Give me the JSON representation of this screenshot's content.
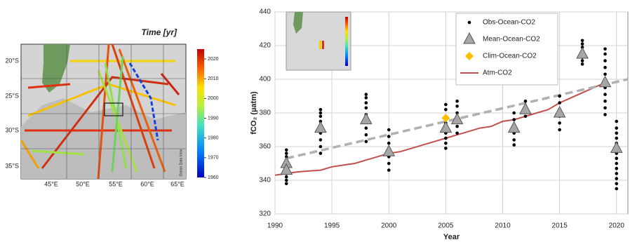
{
  "map": {
    "title": "Time [yr]",
    "colorbar_ticks": [
      2020,
      2010,
      2000,
      1990,
      1980,
      1970,
      1960
    ],
    "colorbar_lim": [
      1960,
      2025
    ],
    "lat_labels": [
      "20°S",
      "25°S",
      "30°S",
      "35°S"
    ],
    "lon_labels": [
      "45°E",
      "50°E",
      "55°E",
      "60°E",
      "65°E"
    ],
    "credit": "Ocean Data View"
  },
  "chart_data": {
    "type": "scatter",
    "x_label": "Year",
    "y_label": "fCO₂ (µatm)",
    "xlim": [
      1990,
      2021
    ],
    "xticks": [
      1990,
      1995,
      2000,
      2005,
      2010,
      2015,
      2020
    ],
    "ylim": [
      320,
      440
    ],
    "yticks": [
      320,
      340,
      360,
      380,
      400,
      420,
      440
    ],
    "grid": true,
    "legend": "upper center",
    "series": [
      {
        "name": "Obs-Ocean-CO2",
        "color": "#000000",
        "marker": "circle",
        "x": [
          1991,
          1991,
          1991,
          1991,
          1991,
          1991,
          1991,
          1991,
          1991,
          1991,
          1991,
          1994,
          1994,
          1994,
          1994,
          1994,
          1994,
          1994,
          1994,
          1994,
          1998,
          1998,
          1998,
          1998,
          1998,
          1998,
          1998,
          1998,
          1998,
          2000,
          2000,
          2000,
          2000,
          2000,
          2000,
          2000,
          2005,
          2005,
          2005,
          2005,
          2005,
          2005,
          2005,
          2005,
          2005,
          2006,
          2006,
          2006,
          2006,
          2006,
          2006,
          2011,
          2011,
          2011,
          2011,
          2011,
          2011,
          2012,
          2012,
          2012,
          2012,
          2015,
          2015,
          2015,
          2015,
          2015,
          2015,
          2017,
          2017,
          2017,
          2017,
          2017,
          2017,
          2017,
          2017,
          2019,
          2019,
          2019,
          2019,
          2019,
          2019,
          2019,
          2019,
          2019,
          2019,
          2019,
          2020,
          2020,
          2020,
          2020,
          2020,
          2020,
          2020,
          2020,
          2020,
          2020,
          2020,
          2020,
          2020,
          2020
        ],
        "values": [
          338,
          340,
          342,
          344,
          346,
          348,
          350,
          352,
          354,
          356,
          358,
          356,
          360,
          364,
          368,
          372,
          375,
          378,
          380,
          382,
          363,
          367,
          371,
          375,
          379,
          383,
          386,
          389,
          391,
          346,
          350,
          354,
          358,
          362,
          366,
          370,
          359,
          362,
          365,
          368,
          371,
          374,
          378,
          382,
          385,
          368,
          372,
          376,
          380,
          384,
          387,
          361,
          364,
          368,
          372,
          376,
          380,
          378,
          381,
          384,
          387,
          370,
          374,
          378,
          382,
          386,
          390,
          409,
          411,
          413,
          415,
          417,
          419,
          421,
          423,
          379,
          383,
          387,
          391,
          395,
          399,
          403,
          407,
          411,
          415,
          418,
          335,
          338,
          341,
          344,
          347,
          350,
          353,
          356,
          359,
          362,
          365,
          368,
          371,
          375
        ]
      },
      {
        "name": "Mean-Ocean-CO2",
        "color": "#a6a6a6",
        "marker": "triangle",
        "x": [
          1991,
          1991,
          1994,
          1998,
          2000,
          2005,
          2006,
          2011,
          2012,
          2015,
          2017,
          2019,
          2020
        ],
        "values": [
          350,
          346,
          371,
          376,
          357,
          371,
          376,
          371,
          382,
          380,
          415,
          398,
          359
        ]
      },
      {
        "name": "Clim-Ocean-CO2",
        "color": "#ffc000",
        "marker": "diamond",
        "x": [
          2005
        ],
        "values": [
          377
        ]
      },
      {
        "name": "Atm-CO2",
        "color": "#c0504d",
        "marker": "line",
        "x": [
          1990,
          1991,
          1992,
          1993,
          1994,
          1995,
          1996,
          1997,
          1998,
          1999,
          2000,
          2001,
          2002,
          2003,
          2004,
          2005,
          2006,
          2007,
          2008,
          2009,
          2010,
          2011,
          2012,
          2013,
          2014,
          2015,
          2016,
          2017,
          2018,
          2019
        ],
        "values": [
          343,
          344,
          345,
          345.5,
          346,
          348,
          349,
          350,
          352,
          354,
          356,
          357,
          359,
          361,
          363,
          365,
          367,
          369,
          371,
          372,
          375,
          376,
          378,
          380,
          382,
          386,
          389,
          392,
          395,
          398
        ]
      },
      {
        "color": "#b0b0b0",
        "marker": "dashed",
        "x": [
          1991,
          2021
        ],
        "values": [
          353,
          400
        ]
      }
    ]
  }
}
